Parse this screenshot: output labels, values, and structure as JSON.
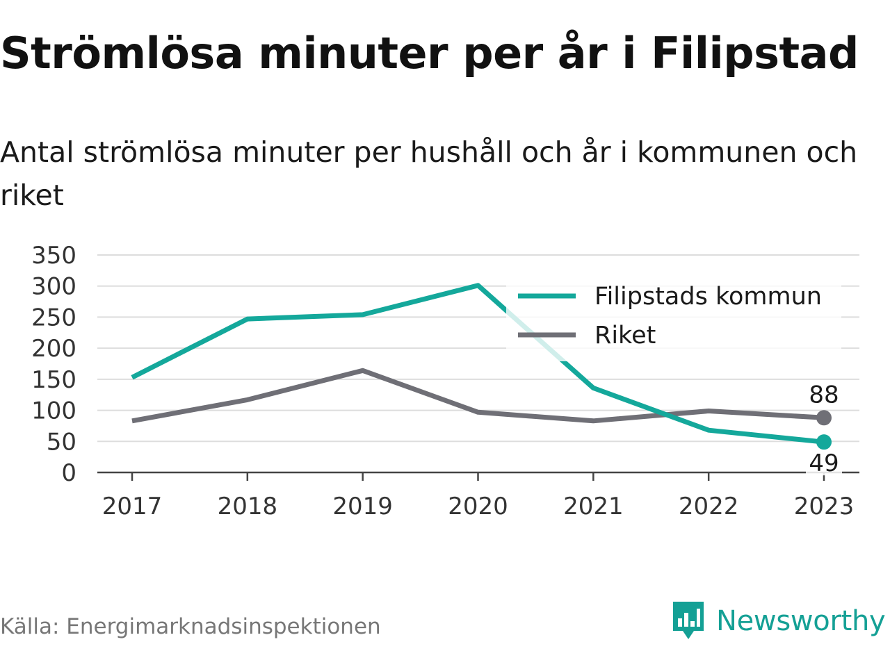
{
  "title": "Strömlösa minuter per år i Filipstad",
  "subtitle": "Antal strömlösa minuter per hushåll och år i kommunen och riket",
  "source": "Källa: Energimarknadsinspektionen",
  "brand": {
    "name": "Newsworthy",
    "icon": "newsworthy-logo-icon",
    "color": "#14a095"
  },
  "chart_data": {
    "type": "line",
    "x": [
      "2017",
      "2018",
      "2019",
      "2020",
      "2021",
      "2022",
      "2023"
    ],
    "ylim": [
      0,
      350
    ],
    "yticks": [
      0,
      50,
      100,
      150,
      200,
      250,
      300,
      350
    ],
    "grid": true,
    "legend_position": "top-right",
    "series": [
      {
        "name": "Filipstads kommun",
        "color": "#14a89b",
        "values": [
          153,
          247,
          254,
          301,
          136,
          68,
          49
        ],
        "end_label": "49"
      },
      {
        "name": "Riket",
        "color": "#6f6f76",
        "values": [
          83,
          117,
          164,
          97,
          83,
          99,
          88
        ],
        "end_label": "88"
      }
    ]
  }
}
